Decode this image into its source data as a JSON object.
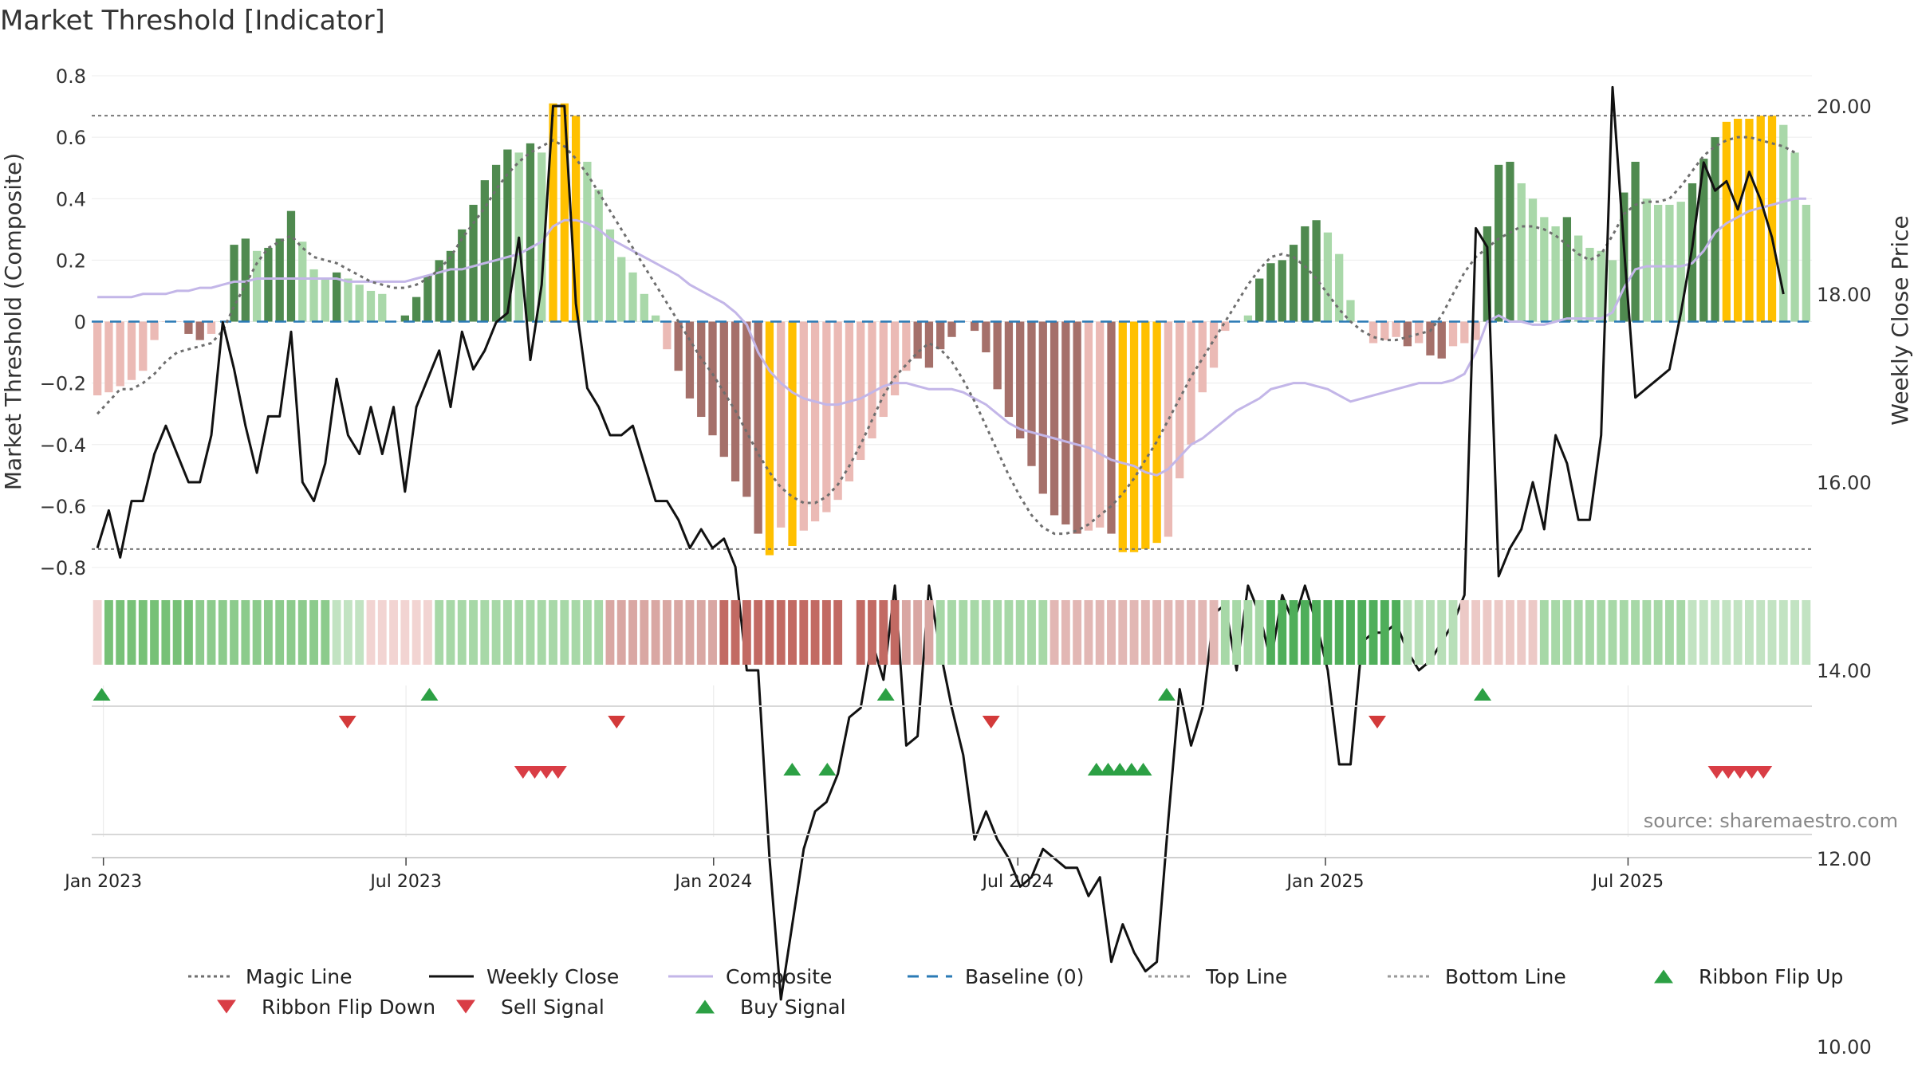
{
  "title": "Market Threshold [Indicator]",
  "source_note": "source: sharemaestro.com",
  "colors": {
    "strong_green": "#4f8a4f",
    "light_green": "#a9d8a9",
    "strong_red": "#a5706a",
    "light_red": "#ebbab5",
    "gold": "#ffc000",
    "composite": "#c3b6e8",
    "magic": "#6e6e6e",
    "close": "#111111",
    "baseline": "#2a7ab5",
    "threshold": "#777777",
    "signal_up": "#2ca044",
    "signal_down": "#d93d45"
  },
  "chart_data": {
    "type": "bar",
    "title": "Market Threshold [Indicator]",
    "ylabel_left": "Market Threshold (Composite)",
    "ylabel_right": "Weekly Close Price",
    "ylim_left": [
      -0.8,
      0.8
    ],
    "ylim_right": [
      10,
      20.5
    ],
    "yticks_left": [
      0.8,
      0.6,
      0.4,
      0.2,
      0,
      -0.2,
      -0.4,
      -0.6,
      -0.8
    ],
    "ytick_labels_left": [
      "0.8",
      "0.6",
      "0.4",
      "0.2",
      "0",
      "−0.2",
      "−0.4",
      "−0.6",
      "−0.8"
    ],
    "yticks_right": [
      20,
      18,
      16,
      14,
      12,
      10
    ],
    "ytick_labels_right": [
      "20.00",
      "18.00",
      "16.00",
      "14.00",
      "12.00",
      "10.00"
    ],
    "x_range": [
      "2022-12-25",
      "2025-10-19"
    ],
    "x_ticks": [
      {
        "date": "2023-01-01",
        "label": "Jan 2023"
      },
      {
        "date": "2023-07-01",
        "label": "Jul 2023"
      },
      {
        "date": "2024-01-01",
        "label": "Jan 2024"
      },
      {
        "date": "2024-07-01",
        "label": "Jul 2024"
      },
      {
        "date": "2025-01-01",
        "label": "Jan 2025"
      },
      {
        "date": "2025-07-01",
        "label": "Jul 2025"
      }
    ],
    "top_line": 0.67,
    "bottom_line": -0.74,
    "baseline": 0,
    "grid": true,
    "legend_position": "bottom",
    "legend": [
      {
        "label": "Magic Line",
        "kind": "dotted",
        "color": "#6e6e6e"
      },
      {
        "label": "Weekly Close",
        "kind": "solid",
        "color": "#111111"
      },
      {
        "label": "Composite",
        "kind": "solid",
        "color": "#c3b6e8"
      },
      {
        "label": "Baseline (0)",
        "kind": "dashed",
        "color": "#2a7ab5"
      },
      {
        "label": "Top Line",
        "kind": "dotted",
        "color": "#999999"
      },
      {
        "label": "Bottom Line",
        "kind": "dotted",
        "color": "#999999"
      },
      {
        "label": "Ribbon Flip Up",
        "kind": "tri-up",
        "color": "#2ca044"
      },
      {
        "label": "Ribbon Flip Down",
        "kind": "tri-down",
        "color": "#d93d45"
      },
      {
        "label": "Sell Signal",
        "kind": "tri-down",
        "color": "#d93d45"
      },
      {
        "label": "Buy Signal",
        "kind": "tri-up",
        "color": "#2ca044"
      }
    ],
    "composite_bars": [
      [
        -0.24,
        "light_red"
      ],
      [
        -0.23,
        "light_red"
      ],
      [
        -0.21,
        "light_red"
      ],
      [
        -0.19,
        "light_red"
      ],
      [
        -0.16,
        "light_red"
      ],
      [
        -0.06,
        "light_red"
      ],
      [
        0,
        "light_red"
      ],
      [
        0,
        "light_red"
      ],
      [
        -0.04,
        "strong_red"
      ],
      [
        -0.06,
        "strong_red"
      ],
      [
        -0.04,
        "light_red"
      ],
      [
        0,
        "light_green"
      ],
      [
        0.25,
        "strong_green"
      ],
      [
        0.27,
        "strong_green"
      ],
      [
        0.23,
        "light_green"
      ],
      [
        0.24,
        "strong_green"
      ],
      [
        0.27,
        "strong_green"
      ],
      [
        0.36,
        "strong_green"
      ],
      [
        0.26,
        "light_green"
      ],
      [
        0.17,
        "light_green"
      ],
      [
        0.14,
        "light_green"
      ],
      [
        0.16,
        "strong_green"
      ],
      [
        0.14,
        "light_green"
      ],
      [
        0.12,
        "light_green"
      ],
      [
        0.1,
        "light_green"
      ],
      [
        0.09,
        "light_green"
      ],
      [
        0,
        "light_green"
      ],
      [
        0.02,
        "strong_green"
      ],
      [
        0.08,
        "strong_green"
      ],
      [
        0.15,
        "strong_green"
      ],
      [
        0.2,
        "strong_green"
      ],
      [
        0.23,
        "strong_green"
      ],
      [
        0.3,
        "strong_green"
      ],
      [
        0.38,
        "strong_green"
      ],
      [
        0.46,
        "strong_green"
      ],
      [
        0.51,
        "strong_green"
      ],
      [
        0.56,
        "strong_green"
      ],
      [
        0.55,
        "light_green"
      ],
      [
        0.58,
        "strong_green"
      ],
      [
        0.55,
        "light_green"
      ],
      [
        0.71,
        "gold"
      ],
      [
        0.71,
        "gold"
      ],
      [
        0.67,
        "gold"
      ],
      [
        0.52,
        "light_green"
      ],
      [
        0.43,
        "light_green"
      ],
      [
        0.3,
        "light_green"
      ],
      [
        0.21,
        "light_green"
      ],
      [
        0.16,
        "light_green"
      ],
      [
        0.09,
        "light_green"
      ],
      [
        0.02,
        "light_green"
      ],
      [
        -0.09,
        "light_red"
      ],
      [
        -0.16,
        "strong_red"
      ],
      [
        -0.25,
        "strong_red"
      ],
      [
        -0.31,
        "strong_red"
      ],
      [
        -0.37,
        "strong_red"
      ],
      [
        -0.44,
        "strong_red"
      ],
      [
        -0.52,
        "strong_red"
      ],
      [
        -0.57,
        "strong_red"
      ],
      [
        -0.69,
        "strong_red"
      ],
      [
        -0.76,
        "gold"
      ],
      [
        -0.67,
        "light_red"
      ],
      [
        -0.73,
        "gold"
      ],
      [
        -0.68,
        "light_red"
      ],
      [
        -0.65,
        "light_red"
      ],
      [
        -0.62,
        "light_red"
      ],
      [
        -0.58,
        "light_red"
      ],
      [
        -0.52,
        "light_red"
      ],
      [
        -0.45,
        "light_red"
      ],
      [
        -0.38,
        "light_red"
      ],
      [
        -0.31,
        "light_red"
      ],
      [
        -0.24,
        "light_red"
      ],
      [
        -0.16,
        "light_red"
      ],
      [
        -0.12,
        "strong_red"
      ],
      [
        -0.15,
        "strong_red"
      ],
      [
        -0.09,
        "strong_red"
      ],
      [
        -0.05,
        "strong_red"
      ],
      [
        0,
        "light_red"
      ],
      [
        -0.03,
        "strong_red"
      ],
      [
        -0.1,
        "strong_red"
      ],
      [
        -0.22,
        "strong_red"
      ],
      [
        -0.31,
        "strong_red"
      ],
      [
        -0.38,
        "strong_red"
      ],
      [
        -0.47,
        "strong_red"
      ],
      [
        -0.56,
        "strong_red"
      ],
      [
        -0.63,
        "strong_red"
      ],
      [
        -0.66,
        "strong_red"
      ],
      [
        -0.69,
        "strong_red"
      ],
      [
        -0.68,
        "light_red"
      ],
      [
        -0.67,
        "light_red"
      ],
      [
        -0.69,
        "strong_red"
      ],
      [
        -0.75,
        "gold"
      ],
      [
        -0.75,
        "gold"
      ],
      [
        -0.74,
        "gold"
      ],
      [
        -0.72,
        "gold"
      ],
      [
        -0.7,
        "light_red"
      ],
      [
        -0.51,
        "light_red"
      ],
      [
        -0.4,
        "light_red"
      ],
      [
        -0.23,
        "light_red"
      ],
      [
        -0.15,
        "light_red"
      ],
      [
        -0.03,
        "light_red"
      ],
      [
        0,
        "light_green"
      ],
      [
        0.02,
        "light_green"
      ],
      [
        0.14,
        "strong_green"
      ],
      [
        0.19,
        "strong_green"
      ],
      [
        0.2,
        "strong_green"
      ],
      [
        0.25,
        "strong_green"
      ],
      [
        0.31,
        "strong_green"
      ],
      [
        0.33,
        "strong_green"
      ],
      [
        0.29,
        "light_green"
      ],
      [
        0.22,
        "light_green"
      ],
      [
        0.07,
        "light_green"
      ],
      [
        0,
        "light_green"
      ],
      [
        -0.07,
        "light_red"
      ],
      [
        -0.06,
        "light_red"
      ],
      [
        -0.05,
        "light_red"
      ],
      [
        -0.08,
        "strong_red"
      ],
      [
        -0.07,
        "light_red"
      ],
      [
        -0.11,
        "strong_red"
      ],
      [
        -0.12,
        "strong_red"
      ],
      [
        -0.08,
        "light_red"
      ],
      [
        -0.07,
        "light_red"
      ],
      [
        -0.06,
        "light_red"
      ],
      [
        0.31,
        "strong_green"
      ],
      [
        0.51,
        "strong_green"
      ],
      [
        0.52,
        "strong_green"
      ],
      [
        0.45,
        "light_green"
      ],
      [
        0.4,
        "light_green"
      ],
      [
        0.34,
        "light_green"
      ],
      [
        0.31,
        "light_green"
      ],
      [
        0.34,
        "strong_green"
      ],
      [
        0.28,
        "light_green"
      ],
      [
        0.24,
        "light_green"
      ],
      [
        0.23,
        "light_green"
      ],
      [
        0.2,
        "light_green"
      ],
      [
        0.42,
        "strong_green"
      ],
      [
        0.52,
        "strong_green"
      ],
      [
        0.4,
        "light_green"
      ],
      [
        0.38,
        "light_green"
      ],
      [
        0.38,
        "light_green"
      ],
      [
        0.39,
        "light_green"
      ],
      [
        0.45,
        "strong_green"
      ],
      [
        0.53,
        "strong_green"
      ],
      [
        0.6,
        "strong_green"
      ],
      [
        0.65,
        "gold"
      ],
      [
        0.66,
        "gold"
      ],
      [
        0.66,
        "gold"
      ],
      [
        0.67,
        "gold"
      ],
      [
        0.67,
        "gold"
      ],
      [
        0.64,
        "light_green"
      ],
      [
        0.55,
        "light_green"
      ],
      [
        0.38,
        "light_green"
      ]
    ],
    "weekly_close": [
      15.3,
      15.7,
      15.2,
      15.8,
      15.8,
      16.3,
      16.6,
      16.3,
      16.0,
      16.0,
      16.5,
      17.7,
      17.2,
      16.6,
      16.1,
      16.7,
      16.7,
      17.6,
      16.0,
      15.8,
      16.2,
      17.1,
      16.5,
      16.3,
      16.8,
      16.3,
      16.8,
      15.9,
      16.8,
      17.1,
      17.4,
      16.8,
      17.6,
      17.2,
      17.4,
      17.7,
      17.8,
      18.6,
      17.3,
      18.1,
      20.0,
      20.0,
      17.9,
      17.0,
      16.8,
      16.5,
      16.5,
      16.6,
      16.2,
      15.8,
      15.8,
      15.6,
      15.3,
      15.5,
      15.3,
      15.4,
      15.1,
      14.0,
      14.0,
      12.0,
      10.5,
      11.3,
      12.1,
      12.5,
      12.6,
      12.9,
      13.5,
      13.6,
      14.3,
      13.9,
      14.9,
      13.2,
      13.3,
      14.9,
      14.2,
      13.6,
      13.1,
      12.2,
      12.5,
      12.2,
      12.0,
      11.7,
      11.8,
      12.1,
      12.0,
      11.9,
      11.9,
      11.6,
      11.8,
      10.9,
      11.3,
      11.0,
      10.8,
      10.9,
      12.4,
      13.8,
      13.2,
      13.6,
      14.6,
      14.7,
      14.0,
      14.9,
      14.6,
      14.1,
      14.8,
      14.5,
      14.9,
      14.5,
      14.0,
      13.0,
      13.0,
      14.3,
      14.4,
      14.4,
      14.5,
      14.2,
      14.0,
      14.1,
      14.3,
      14.5,
      14.8,
      18.7,
      18.5,
      15.0,
      15.3,
      15.5,
      16.0,
      15.5,
      16.5,
      16.2,
      15.6,
      15.6,
      16.5,
      20.2,
      18.5,
      16.9,
      17.0,
      17.1,
      17.2,
      17.8,
      18.5,
      19.4,
      19.1,
      19.2,
      18.9,
      19.3,
      19.0,
      18.6,
      18.0
    ],
    "composite_line": [
      0.08,
      0.08,
      0.08,
      0.08,
      0.09,
      0.09,
      0.09,
      0.1,
      0.1,
      0.11,
      0.11,
      0.12,
      0.13,
      0.13,
      0.14,
      0.14,
      0.14,
      0.14,
      0.14,
      0.14,
      0.14,
      0.14,
      0.13,
      0.13,
      0.13,
      0.13,
      0.13,
      0.13,
      0.14,
      0.15,
      0.16,
      0.17,
      0.17,
      0.18,
      0.19,
      0.2,
      0.21,
      0.22,
      0.24,
      0.26,
      0.31,
      0.33,
      0.33,
      0.32,
      0.3,
      0.27,
      0.25,
      0.23,
      0.21,
      0.19,
      0.17,
      0.15,
      0.12,
      0.1,
      0.08,
      0.06,
      0.03,
      -0.01,
      -0.1,
      -0.16,
      -0.2,
      -0.23,
      -0.25,
      -0.26,
      -0.27,
      -0.27,
      -0.26,
      -0.25,
      -0.23,
      -0.21,
      -0.2,
      -0.2,
      -0.21,
      -0.22,
      -0.22,
      -0.22,
      -0.23,
      -0.25,
      -0.27,
      -0.3,
      -0.33,
      -0.35,
      -0.36,
      -0.37,
      -0.38,
      -0.39,
      -0.4,
      -0.41,
      -0.43,
      -0.45,
      -0.46,
      -0.47,
      -0.49,
      -0.5,
      -0.48,
      -0.44,
      -0.4,
      -0.38,
      -0.35,
      -0.32,
      -0.29,
      -0.27,
      -0.25,
      -0.22,
      -0.21,
      -0.2,
      -0.2,
      -0.21,
      -0.22,
      -0.24,
      -0.26,
      -0.25,
      -0.24,
      -0.23,
      -0.22,
      -0.21,
      -0.2,
      -0.2,
      -0.2,
      -0.19,
      -0.17,
      -0.1,
      0.0,
      0.02,
      0.0,
      0.0,
      -0.01,
      -0.01,
      0.0,
      0.01,
      0.01,
      0.01,
      0.01,
      0.03,
      0.11,
      0.17,
      0.18,
      0.18,
      0.18,
      0.18,
      0.19,
      0.23,
      0.29,
      0.32,
      0.34,
      0.36,
      0.37,
      0.38,
      0.39,
      0.4,
      0.4
    ],
    "magic_line": [
      -0.3,
      -0.26,
      -0.22,
      -0.22,
      -0.2,
      -0.17,
      -0.13,
      -0.1,
      -0.09,
      -0.08,
      -0.07,
      -0.03,
      0.05,
      0.12,
      0.19,
      0.24,
      0.26,
      0.28,
      0.24,
      0.21,
      0.2,
      0.19,
      0.17,
      0.15,
      0.13,
      0.12,
      0.11,
      0.11,
      0.12,
      0.14,
      0.17,
      0.21,
      0.27,
      0.32,
      0.37,
      0.43,
      0.48,
      0.52,
      0.55,
      0.57,
      0.59,
      0.57,
      0.53,
      0.48,
      0.42,
      0.36,
      0.3,
      0.24,
      0.18,
      0.12,
      0.06,
      0.0,
      -0.06,
      -0.12,
      -0.17,
      -0.23,
      -0.29,
      -0.36,
      -0.43,
      -0.49,
      -0.54,
      -0.57,
      -0.59,
      -0.59,
      -0.57,
      -0.53,
      -0.47,
      -0.4,
      -0.32,
      -0.24,
      -0.18,
      -0.14,
      -0.1,
      -0.07,
      -0.09,
      -0.13,
      -0.19,
      -0.26,
      -0.34,
      -0.42,
      -0.5,
      -0.57,
      -0.63,
      -0.67,
      -0.69,
      -0.69,
      -0.68,
      -0.66,
      -0.63,
      -0.6,
      -0.56,
      -0.51,
      -0.45,
      -0.39,
      -0.32,
      -0.25,
      -0.18,
      -0.12,
      -0.06,
      0.0,
      0.06,
      0.12,
      0.17,
      0.21,
      0.22,
      0.21,
      0.18,
      0.14,
      0.09,
      0.04,
      0.0,
      -0.03,
      -0.05,
      -0.06,
      -0.06,
      -0.05,
      -0.04,
      -0.03,
      0.02,
      0.09,
      0.16,
      0.21,
      0.24,
      0.27,
      0.29,
      0.31,
      0.31,
      0.3,
      0.28,
      0.25,
      0.22,
      0.2,
      0.22,
      0.28,
      0.35,
      0.38,
      0.39,
      0.39,
      0.4,
      0.44,
      0.49,
      0.54,
      0.57,
      0.59,
      0.6,
      0.6,
      0.59,
      0.58,
      0.57,
      0.55
    ],
    "ribbon": [
      [
        "#f2d4d2",
        1
      ],
      [
        "#77c177",
        8
      ],
      [
        "#8ccb8c",
        12
      ],
      [
        "#c2e3c2",
        3
      ],
      [
        "#f2d4d2",
        6
      ],
      [
        "#a7d8a7",
        15
      ],
      [
        "#d9a7a3",
        10
      ],
      [
        "#c26a63",
        11
      ],
      [
        "#ffffff",
        1
      ],
      [
        "#c26a63",
        4
      ],
      [
        "#d9a7a3",
        3
      ],
      [
        "#a7d8a7",
        10
      ],
      [
        "#e2b7b4",
        15
      ],
      [
        "#a7d8a7",
        4
      ],
      [
        "#4fae5a",
        12
      ],
      [
        "#b8dfb8",
        5
      ],
      [
        "#ecc9c6",
        7
      ],
      [
        "#a7d8a7",
        13
      ],
      [
        "#c2e3c2",
        14
      ]
    ],
    "ribbon_flip_up": [
      "2022-12-31",
      "2023-07-15",
      "2024-04-13",
      "2024-09-28",
      "2025-04-05"
    ],
    "ribbon_flip_down": [
      "2023-05-27",
      "2023-11-04",
      "2024-06-15",
      "2025-02-01"
    ],
    "sell_signals": [
      "2023-09-09",
      "2023-09-16",
      "2023-09-23",
      "2023-09-30",
      "2025-08-23",
      "2025-08-30",
      "2025-09-06",
      "2025-09-13",
      "2025-09-20"
    ],
    "buy_signals": [
      "2024-02-17",
      "2024-03-09",
      "2024-08-17",
      "2024-08-24",
      "2024-08-31",
      "2024-09-07",
      "2024-09-14"
    ]
  }
}
